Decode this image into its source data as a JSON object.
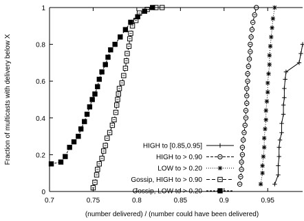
{
  "chart_data": {
    "type": "line",
    "title": "",
    "xlabel": "(number delivered) / (number could have been delivered)",
    "ylabel": "Fraction of multicasts with delivery below X",
    "xlim": [
      0.7,
      0.99
    ],
    "ylim": [
      0,
      1
    ],
    "x_ticks": [
      {
        "value": 0.7,
        "label": "0.7"
      },
      {
        "value": 0.75,
        "label": "0.75"
      },
      {
        "value": 0.8,
        "label": "0.8"
      },
      {
        "value": 0.85,
        "label": "0.85"
      },
      {
        "value": 0.9,
        "label": "0.9"
      },
      {
        "value": 0.95,
        "label": "0.95"
      }
    ],
    "y_ticks": [
      {
        "value": 0,
        "label": "0"
      },
      {
        "value": 0.2,
        "label": "0.2"
      },
      {
        "value": 0.4,
        "label": "0.4"
      },
      {
        "value": 0.6,
        "label": "0.6"
      },
      {
        "value": 0.8,
        "label": "0.8"
      },
      {
        "value": 1,
        "label": "1"
      }
    ],
    "legend_position": "bottom-right",
    "series": [
      {
        "name": "HIGH to [0.85,0.95]",
        "marker": "plus",
        "dash": "",
        "points": [
          [
            0.958,
            0.04
          ],
          [
            0.962,
            0.09
          ],
          [
            0.962,
            0.14
          ],
          [
            0.963,
            0.19
          ],
          [
            0.963,
            0.24
          ],
          [
            0.964,
            0.28
          ],
          [
            0.966,
            0.32
          ],
          [
            0.966,
            0.37
          ],
          [
            0.968,
            0.42
          ],
          [
            0.968,
            0.47
          ],
          [
            0.969,
            0.51
          ],
          [
            0.969,
            0.56
          ],
          [
            0.97,
            0.61
          ],
          [
            0.971,
            0.65
          ],
          [
            0.986,
            0.7
          ],
          [
            0.988,
            0.75
          ],
          [
            0.99,
            0.8
          ]
        ]
      },
      {
        "name": "HIGH to > 0.90",
        "marker": "circle",
        "dash": "4,2",
        "points": [
          [
            0.918,
            0.04
          ],
          [
            0.919,
            0.08
          ],
          [
            0.92,
            0.12
          ],
          [
            0.92,
            0.16
          ],
          [
            0.921,
            0.2
          ],
          [
            0.921,
            0.24
          ],
          [
            0.922,
            0.28
          ],
          [
            0.923,
            0.32
          ],
          [
            0.924,
            0.36
          ],
          [
            0.925,
            0.4
          ],
          [
            0.925,
            0.44
          ],
          [
            0.926,
            0.48
          ],
          [
            0.926,
            0.52
          ],
          [
            0.926,
            0.56
          ],
          [
            0.927,
            0.6
          ],
          [
            0.927,
            0.64
          ],
          [
            0.928,
            0.68
          ],
          [
            0.929,
            0.72
          ],
          [
            0.93,
            0.76
          ],
          [
            0.93,
            0.8
          ],
          [
            0.931,
            0.84
          ],
          [
            0.932,
            0.88
          ],
          [
            0.933,
            0.92
          ],
          [
            0.935,
            0.96
          ],
          [
            0.937,
            1.0
          ]
        ]
      },
      {
        "name": "LOW to > 0.20",
        "marker": "star",
        "dash": "1,2",
        "points": [
          [
            0.942,
            0.04
          ],
          [
            0.944,
            0.1
          ],
          [
            0.944,
            0.14
          ],
          [
            0.945,
            0.19
          ],
          [
            0.946,
            0.24
          ],
          [
            0.946,
            0.29
          ],
          [
            0.947,
            0.34
          ],
          [
            0.948,
            0.39
          ],
          [
            0.948,
            0.44
          ],
          [
            0.949,
            0.49
          ],
          [
            0.95,
            0.54
          ],
          [
            0.95,
            0.59
          ],
          [
            0.951,
            0.64
          ],
          [
            0.952,
            0.69
          ],
          [
            0.952,
            0.74
          ],
          [
            0.953,
            0.79
          ],
          [
            0.954,
            0.84
          ],
          [
            0.955,
            0.89
          ],
          [
            0.956,
            0.94
          ],
          [
            0.958,
            1.0
          ]
        ]
      },
      {
        "name": "Gossip, HIGH to > 0.90",
        "marker": "square-open",
        "dash": "5,3",
        "points": [
          [
            0.75,
            0.02
          ],
          [
            0.752,
            0.05
          ],
          [
            0.754,
            0.09
          ],
          [
            0.755,
            0.12
          ],
          [
            0.757,
            0.15
          ],
          [
            0.76,
            0.18
          ],
          [
            0.762,
            0.22
          ],
          [
            0.764,
            0.25
          ],
          [
            0.766,
            0.29
          ],
          [
            0.769,
            0.32
          ],
          [
            0.772,
            0.36
          ],
          [
            0.774,
            0.39
          ],
          [
            0.776,
            0.43
          ],
          [
            0.777,
            0.47
          ],
          [
            0.778,
            0.5
          ],
          [
            0.779,
            0.53
          ],
          [
            0.78,
            0.56
          ],
          [
            0.783,
            0.59
          ],
          [
            0.785,
            0.63
          ],
          [
            0.787,
            0.67
          ],
          [
            0.788,
            0.71
          ],
          [
            0.789,
            0.75
          ],
          [
            0.791,
            0.79
          ],
          [
            0.792,
            0.83
          ],
          [
            0.793,
            0.86
          ],
          [
            0.795,
            0.9
          ],
          [
            0.799,
            0.93
          ],
          [
            0.803,
            0.97
          ],
          [
            0.812,
            0.99
          ],
          [
            0.822,
            1.0
          ],
          [
            0.829,
            1.0
          ]
        ]
      },
      {
        "name": "Gossip, LOW to > 0.20",
        "marker": "square-filled",
        "dash": "3,2",
        "points": [
          [
            0.702,
            0.15
          ],
          [
            0.713,
            0.16
          ],
          [
            0.718,
            0.19
          ],
          [
            0.723,
            0.24
          ],
          [
            0.728,
            0.27
          ],
          [
            0.733,
            0.3
          ],
          [
            0.736,
            0.34
          ],
          [
            0.74,
            0.38
          ],
          [
            0.743,
            0.42
          ],
          [
            0.746,
            0.46
          ],
          [
            0.749,
            0.5
          ],
          [
            0.752,
            0.53
          ],
          [
            0.755,
            0.57
          ],
          [
            0.757,
            0.61
          ],
          [
            0.76,
            0.65
          ],
          [
            0.764,
            0.69
          ],
          [
            0.767,
            0.73
          ],
          [
            0.77,
            0.77
          ],
          [
            0.775,
            0.8
          ],
          [
            0.781,
            0.84
          ],
          [
            0.787,
            0.88
          ],
          [
            0.793,
            0.92
          ],
          [
            0.801,
            0.95
          ],
          [
            0.809,
            0.98
          ],
          [
            0.818,
            1.0
          ]
        ]
      }
    ]
  }
}
